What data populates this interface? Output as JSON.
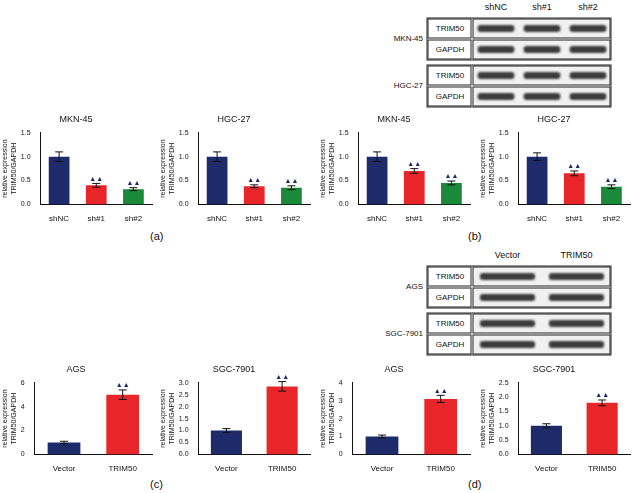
{
  "chart_data": [
    {
      "type": "bar",
      "title": "MKN-45",
      "y_label": [
        "relative expression",
        "TRIM50/GAPDH"
      ],
      "categories": [
        "shNC",
        "sh#1",
        "sh#2"
      ],
      "values": [
        1.0,
        0.4,
        0.32
      ],
      "errors": [
        0.1,
        0.04,
        0.03
      ],
      "colors": [
        "#1f2a6b",
        "#e8262a",
        "#1a8a3a"
      ],
      "annotations": [
        null,
        "▲▲",
        "▲▲"
      ],
      "ylim": [
        0,
        1.5
      ],
      "yticks": [
        {
          "value": 0,
          "label": "0.0"
        },
        0.5,
        {
          "value": 1,
          "label": "1.0"
        },
        1.5
      ],
      "grid": false
    },
    {
      "type": "bar",
      "title": "HGC-27",
      "y_label": [
        "relative expression",
        "TRIM50/GAPDH"
      ],
      "categories": [
        "shNC",
        "sh#1",
        "sh#2"
      ],
      "values": [
        1.0,
        0.38,
        0.35
      ],
      "errors": [
        0.1,
        0.03,
        0.04
      ],
      "colors": [
        "#1f2a6b",
        "#e8262a",
        "#1a8a3a"
      ],
      "annotations": [
        null,
        "▲▲",
        "▲▲"
      ],
      "ylim": [
        0,
        1.5
      ],
      "yticks": [
        {
          "value": 0,
          "label": "0.0"
        },
        0.5,
        {
          "value": 1,
          "label": "1.0"
        },
        1.5
      ],
      "grid": false
    },
    {
      "type": "bar",
      "title": "MKN-45",
      "y_label": [
        "relative expression",
        "TRIM50/GAPDH"
      ],
      "categories": [
        "shNC",
        "sh#1",
        "sh#2"
      ],
      "values": [
        1.0,
        0.7,
        0.45
      ],
      "errors": [
        0.1,
        0.05,
        0.04
      ],
      "colors": [
        "#1f2a6b",
        "#e8262a",
        "#1a8a3a"
      ],
      "annotations": [
        null,
        "▲▲",
        "▲▲"
      ],
      "ylim": [
        0,
        1.5
      ],
      "yticks": [
        {
          "value": 0,
          "label": "0.0"
        },
        0.5,
        {
          "value": 1,
          "label": "1.0"
        },
        1.5
      ],
      "grid": false
    },
    {
      "type": "bar",
      "title": "HGC-27",
      "y_label": [
        "relative expression",
        "TRIM50/GAPDH"
      ],
      "categories": [
        "shNC",
        "sh#1",
        "sh#2"
      ],
      "values": [
        1.0,
        0.65,
        0.37
      ],
      "errors": [
        0.08,
        0.05,
        0.04
      ],
      "colors": [
        "#1f2a6b",
        "#e8262a",
        "#1a8a3a"
      ],
      "annotations": [
        null,
        "▲▲",
        "▲▲"
      ],
      "ylim": [
        0,
        1.5
      ],
      "yticks": [
        {
          "value": 0,
          "label": "0.0"
        },
        0.5,
        {
          "value": 1,
          "label": "1.0"
        },
        1.5
      ],
      "grid": false
    },
    {
      "type": "bar",
      "title": "AGS",
      "y_label": [
        "relative expression",
        "TRIM50/GAPDH"
      ],
      "categories": [
        "Vector",
        "TRIM50"
      ],
      "values": [
        1.0,
        5.0
      ],
      "errors": [
        0.1,
        0.4
      ],
      "colors": [
        "#1f2a6b",
        "#e8262a"
      ],
      "annotations": [
        null,
        "▲▲"
      ],
      "ylim": [
        0,
        6
      ],
      "yticks": [
        0,
        2,
        4,
        6
      ],
      "grid": false
    },
    {
      "type": "bar",
      "title": "SGC-7901",
      "y_label": [
        "relative expression",
        "TRIM50/GAPDH"
      ],
      "categories": [
        "Vector",
        "TRIM50"
      ],
      "values": [
        1.0,
        2.85
      ],
      "errors": [
        0.08,
        0.2
      ],
      "colors": [
        "#1f2a6b",
        "#e8262a"
      ],
      "annotations": [
        null,
        "▲▲"
      ],
      "ylim": [
        0,
        3
      ],
      "yticks": [
        {
          "value": 0,
          "label": "0.0"
        },
        0.5,
        {
          "value": 1,
          "label": "1.0"
        },
        1.5,
        {
          "value": 2,
          "label": "2.0"
        },
        2.5,
        {
          "value": 3,
          "label": "3.0"
        }
      ],
      "grid": false
    },
    {
      "type": "bar",
      "title": "AGS",
      "y_label": [
        "relative expression",
        "TRIM50/GAPDH"
      ],
      "categories": [
        "Vector",
        "TRIM50"
      ],
      "values": [
        1.0,
        3.1
      ],
      "errors": [
        0.08,
        0.2
      ],
      "colors": [
        "#1f2a6b",
        "#e8262a"
      ],
      "annotations": [
        null,
        "▲▲"
      ],
      "ylim": [
        0,
        4
      ],
      "yticks": [
        0,
        1,
        2,
        3,
        4
      ],
      "grid": false
    },
    {
      "type": "bar",
      "title": "SGC-7901",
      "y_label": [
        "relative expression",
        "TRIM50/GAPDH"
      ],
      "categories": [
        "Vector",
        "TRIM50"
      ],
      "values": [
        1.0,
        1.8
      ],
      "errors": [
        0.07,
        0.1
      ],
      "colors": [
        "#1f2a6b",
        "#e8262a"
      ],
      "annotations": [
        null,
        "▲▲"
      ],
      "ylim": [
        0,
        2.5
      ],
      "yticks": [
        {
          "value": 0,
          "label": "0.0"
        },
        0.5,
        {
          "value": 1,
          "label": "1.0"
        },
        1.5,
        {
          "value": 2,
          "label": "2.0"
        },
        2.5
      ],
      "grid": false
    }
  ],
  "blots": [
    {
      "columns": [
        "shNC",
        "sh#1",
        "sh#2"
      ],
      "groups": [
        {
          "cell": "MKN-45",
          "rows": [
            "TRIM50",
            "GAPDH"
          ]
        },
        {
          "cell": "HGC-27",
          "rows": [
            "TRIM50",
            "GAPDH"
          ]
        }
      ]
    },
    {
      "columns": [
        "Vector",
        "TRIM50"
      ],
      "groups": [
        {
          "cell": "AGS",
          "rows": [
            "TRIM50",
            "GAPDH"
          ]
        },
        {
          "cell": "SGC-7901",
          "rows": [
            "TRIM50",
            "GAPDH"
          ]
        }
      ]
    }
  ],
  "panel_labels": [
    "(a)",
    "(b)",
    "(c)",
    "(d)"
  ]
}
